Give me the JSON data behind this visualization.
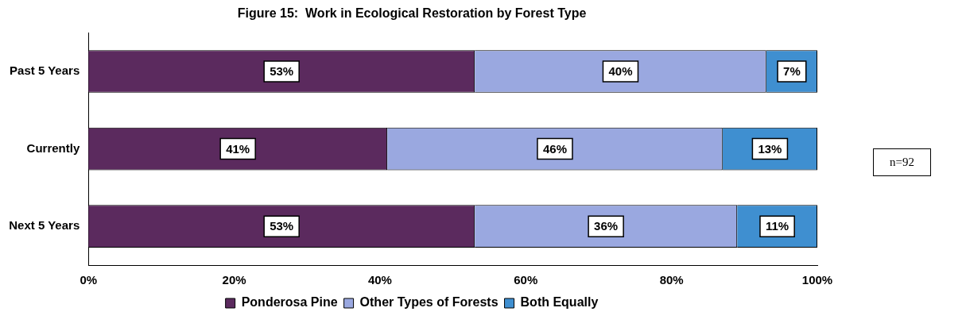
{
  "chart_data": {
    "type": "bar",
    "title": "Figure 15:  Work in Ecological Restoration by Forest Type",
    "orientation": "horizontal",
    "stacked": true,
    "categories": [
      "Past 5 Years",
      "Currently",
      "Next 5 Years"
    ],
    "series": [
      {
        "name": "Ponderosa Pine",
        "color": "#5b2a5e",
        "values": [
          53,
          41,
          53
        ],
        "value_labels": [
          "53%",
          "41%",
          "53%"
        ]
      },
      {
        "name": "Other Types of Forests",
        "color": "#9aa8e0",
        "values": [
          40,
          46,
          36
        ],
        "value_labels": [
          "40%",
          "46%",
          "36%"
        ]
      },
      {
        "name": "Both Equally",
        "color": "#3f8fd0",
        "values": [
          7,
          13,
          11
        ],
        "value_labels": [
          "7%",
          "13%",
          "11%"
        ]
      }
    ],
    "xlim": [
      0,
      100
    ],
    "xticks": [
      {
        "value": 0,
        "label": "0%"
      },
      {
        "value": 20,
        "label": "20%"
      },
      {
        "value": 40,
        "label": "40%"
      },
      {
        "value": 60,
        "label": "60%"
      },
      {
        "value": 80,
        "label": "80%"
      },
      {
        "value": 100,
        "label": "100%"
      }
    ],
    "grid": false,
    "legend": "bottom",
    "annotations": [
      "n=92"
    ]
  }
}
